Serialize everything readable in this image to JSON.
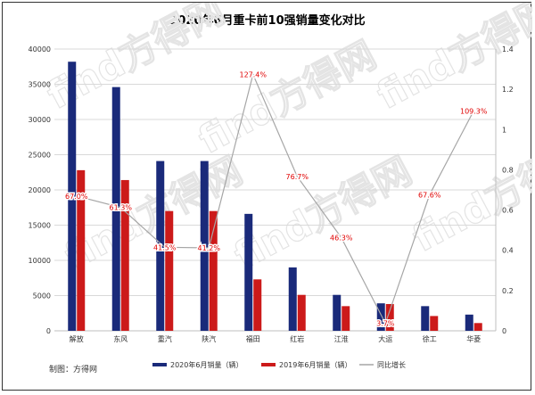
{
  "chart_data": {
    "type": "bar",
    "title": "2020年6月重卡前10强销量变化对比",
    "categories": [
      "解放",
      "东风",
      "重汽",
      "陕汽",
      "福田",
      "红岩",
      "江淮",
      "大运",
      "徐工",
      "华菱"
    ],
    "series": [
      {
        "name": "2020年6月销量（辆）",
        "type": "bar",
        "axis": "left",
        "color": "#1a2a7a",
        "values": [
          38200,
          34600,
          24100,
          24100,
          16600,
          9000,
          5100,
          3900,
          3500,
          2300
        ]
      },
      {
        "name": "2019年6月销量（辆）",
        "type": "bar",
        "axis": "left",
        "color": "#cc1a1a",
        "values": [
          22800,
          21400,
          17000,
          17000,
          7300,
          5100,
          3500,
          3800,
          2100,
          1100
        ]
      },
      {
        "name": "同比增长",
        "type": "line",
        "axis": "right",
        "color": "#a6a6a6",
        "values": [
          0.67,
          0.613,
          0.415,
          0.412,
          1.274,
          0.767,
          0.463,
          0.037,
          0.676,
          1.093
        ],
        "labels": [
          "67.0%",
          "61.3%",
          "41.5%",
          "41.2%",
          "127.4%",
          "76.7%",
          "46.3%",
          "3.7%",
          "67.6%",
          "109.3%"
        ]
      }
    ],
    "y_left": {
      "min": 0,
      "max": 40000,
      "ticks": [
        "0",
        "5000",
        "10000",
        "15000",
        "20000",
        "25000",
        "30000",
        "35000",
        "40000"
      ]
    },
    "y_right": {
      "min": 0,
      "max": 1.4,
      "ticks": [
        "0",
        "0.2",
        "0.4",
        "0.6",
        "0.8",
        "1",
        "1.2",
        "1.4"
      ]
    },
    "grid": true,
    "legend_position": "bottom",
    "source": "制图：方得网",
    "watermark": "find方得网"
  }
}
